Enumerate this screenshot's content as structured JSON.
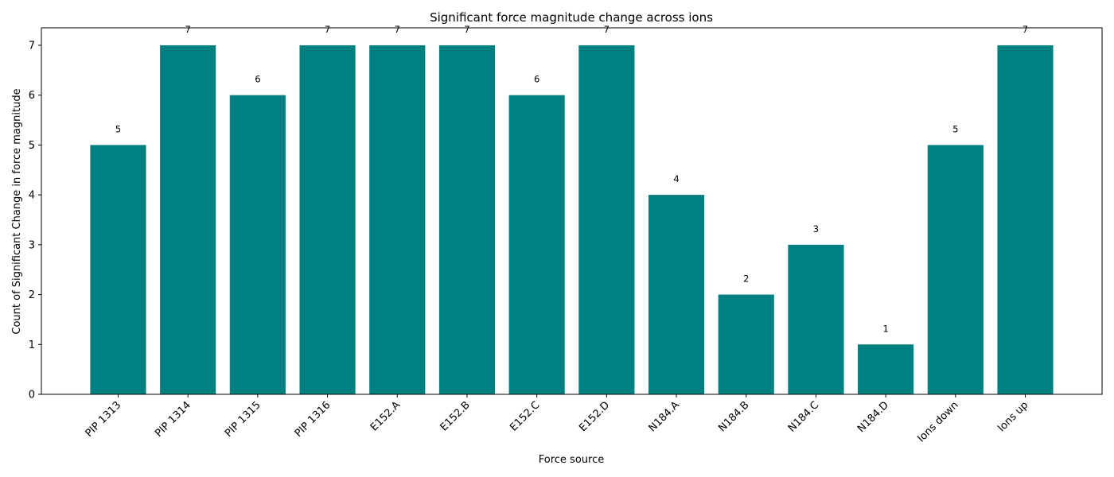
{
  "chart_data": {
    "type": "bar",
    "title": "Significant force magnitude change across ions",
    "xlabel": "Force source",
    "ylabel": "Count of Significant Change in force magnitude",
    "categories": [
      "PIP 1313",
      "PIP 1314",
      "PIP 1315",
      "PIP 1316",
      "E152.A",
      "E152.B",
      "E152.C",
      "E152.D",
      "N184.A",
      "N184.B",
      "N184.C",
      "N184.D",
      "Ions down",
      "Ions up"
    ],
    "values": [
      5,
      7,
      6,
      7,
      7,
      7,
      6,
      7,
      4,
      2,
      3,
      1,
      5,
      7
    ],
    "ylim": [
      0,
      7.35
    ],
    "yticks": [
      0,
      1,
      2,
      3,
      4,
      5,
      6,
      7
    ],
    "bar_color": "#008080",
    "grid": false,
    "legend": false,
    "data_labels": true
  }
}
